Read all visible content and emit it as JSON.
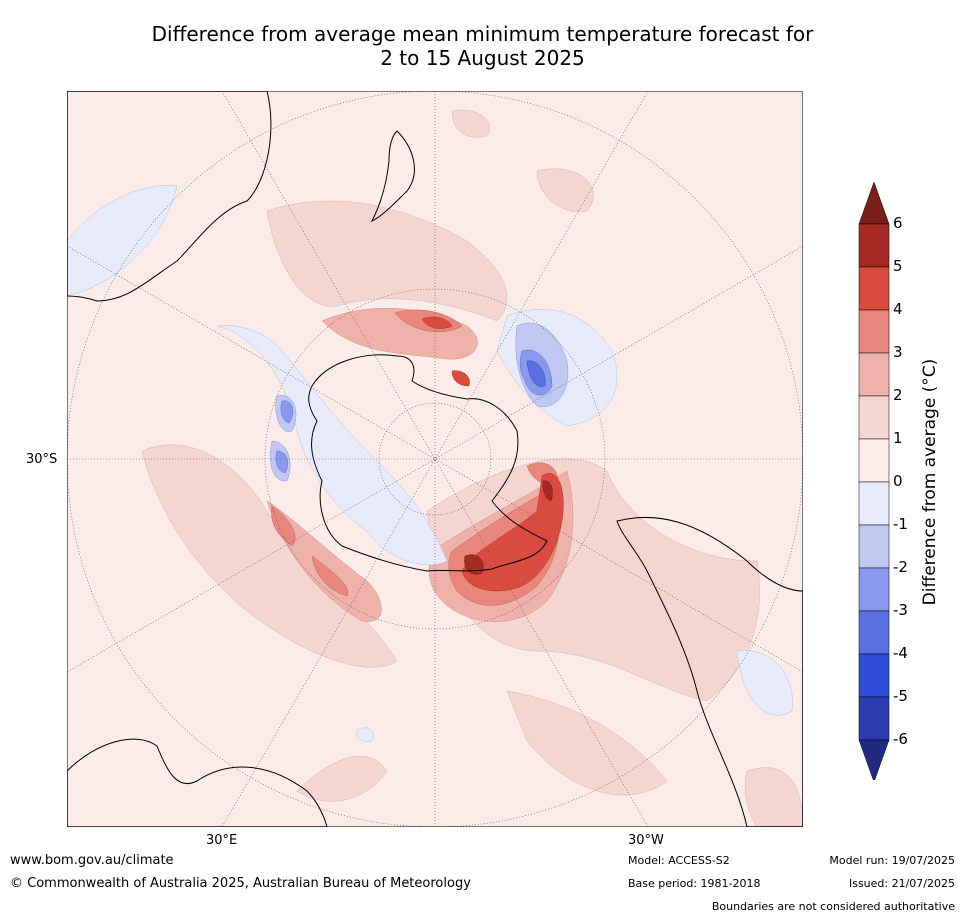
{
  "title": {
    "line1": "Difference from average mean minimum temperature forecast for",
    "line2": "2 to 15 August 2025"
  },
  "map": {
    "projection": "south polar stereographic",
    "labels": {
      "lat_left": "30°S",
      "lon_bottom_left": "30°E",
      "lon_bottom_right": "30°W"
    }
  },
  "colorbar": {
    "label": "Difference from average (°C)",
    "ticks": [
      "6",
      "5",
      "4",
      "3",
      "2",
      "1",
      "0",
      "-1",
      "-2",
      "-3",
      "-4",
      "-5",
      "-6"
    ],
    "colors": {
      "above6": "#7a1f1a",
      "5to6": "#a52a23",
      "4to5": "#d94b3e",
      "3to4": "#e8867c",
      "2to3": "#eeb2aa",
      "1to2": "#f5d5d1",
      "0to1": "#fbecea",
      "m1to0": "#e8ecfa",
      "m2tom1": "#c0c8f2",
      "m3tom2": "#8898ea",
      "m4tom3": "#5a6fe0",
      "m5tom4": "#2e4cdc",
      "m6tom5": "#2a3cb0",
      "below_m6": "#1f2a80"
    }
  },
  "footer": {
    "url": "www.bom.gov.au/climate",
    "copyright": "© Commonwealth of Australia 2025, Australian Bureau of Meteorology",
    "model": "Model: ACCESS-S2",
    "base_period": "Base period: 1981-2018",
    "model_run": "Model run: 19/07/2025",
    "issued": "Issued: 21/07/2025",
    "disclaimer": "Boundaries are not considered authoritative"
  }
}
